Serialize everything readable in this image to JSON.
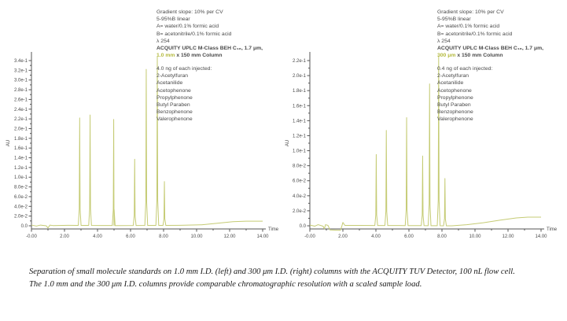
{
  "colors": {
    "trace": "#c5cb74",
    "highlight": "#b3b93c",
    "text": "#4a4a4a",
    "axis": "#555555",
    "caption": "#1a1a1a"
  },
  "caption": {
    "line1": "Separation of small molecule standards on 1.0 mm I.D. (left) and 300 μm I.D. (right) columns with the ACQUITY TUV Detector, 100 nL flow cell.",
    "line2": "The 1.0 mm and the 300 μm I.D. columns provide comparable chromatographic resolution with a scaled sample load."
  },
  "chart_data": [
    {
      "type": "line",
      "position": "left",
      "header": {
        "lines": [
          "Gradient slope: 10% per CV",
          "5-95%B linear",
          "A= water/0.1% formic acid",
          "B= acetonitrile/0.1% formic acid",
          "λ 254",
          "ACQUITY UPLC M-Class BEH C₁₈, 1.7 μm,"
        ],
        "column_highlight": "1.0 mm",
        "column_rest": " x 150 mm Column"
      },
      "sample_lines": [
        "4.0 ng of each injected:",
        "2-Acetylfuran",
        "Acetanilide",
        "Acetophenone",
        "Propylphenone",
        "Butyl Paraben",
        "Benzophenone",
        "Valerophenone"
      ],
      "xlabel": "Time",
      "ylabel": "AU",
      "xlim": [
        0,
        14
      ],
      "ylim": [
        0,
        0.34
      ],
      "x_ticks": [
        "-0.00",
        "2.00",
        "4.00",
        "6.00",
        "8.00",
        "10.00",
        "12.00",
        "14.00"
      ],
      "y_ticks": [
        "0.0",
        "2.0e-2",
        "4.0e-2",
        "6.0e-2",
        "8.0e-2",
        "1.0e-1",
        "1.2e-1",
        "1.4e-1",
        "1.6e-1",
        "1.8e-1",
        "2.0e-1",
        "2.2e-1",
        "2.4e-1",
        "2.6e-1",
        "2.8e-1",
        "3.0e-1",
        "3.2e-1",
        "3.4e-1"
      ],
      "grid": false,
      "peaks": [
        {
          "name": "2-Acetylfuran",
          "t": 2.92,
          "au": 0.222
        },
        {
          "name": "Acetanilide",
          "t": 3.55,
          "au": 0.228
        },
        {
          "name": "Acetophenone",
          "t": 4.98,
          "au": 0.219
        },
        {
          "name": "Propylphenone",
          "t": 6.25,
          "au": 0.137
        },
        {
          "name": "Butyl Paraben",
          "t": 6.95,
          "au": 0.322
        },
        {
          "name": "Benzophenone",
          "t": 7.62,
          "au": 0.348
        },
        {
          "name": "Valerophenone",
          "t": 8.05,
          "au": 0.091
        }
      ],
      "baseline": [
        [
          0,
          0.0015
        ],
        [
          0.3,
          -0.0005
        ],
        [
          0.55,
          0.0015
        ],
        [
          0.9,
          0.0
        ],
        [
          1.0,
          -0.0045
        ],
        [
          1.12,
          0.0015
        ],
        [
          1.3,
          0.0005
        ],
        [
          2.2,
          0.001
        ],
        [
          5,
          0.0005
        ],
        [
          9,
          0.001
        ],
        [
          10.3,
          0.002
        ],
        [
          11.2,
          0.005
        ],
        [
          12.2,
          0.0085
        ],
        [
          13,
          0.0095
        ],
        [
          14,
          0.0095
        ]
      ]
    },
    {
      "type": "line",
      "position": "right",
      "header": {
        "lines": [
          "Gradient slope: 10% per CV",
          "5-95%B linear",
          "A= water/0.1% formic acid",
          "B= acetonitrile/0.1% formic acid",
          "λ 254",
          "ACQUITY UPLC M-Class BEH C₁₈, 1.7 μm,"
        ],
        "column_highlight": "300 μm",
        "column_rest": " x 150 mm Column"
      },
      "sample_lines": [
        "0.4 ng of each injected:",
        "2-Acetylfuran",
        "Acetanilide",
        "Acetophenone",
        "Propylphenone",
        "Butyl Paraben",
        "Benzophenone",
        "Valerophenone"
      ],
      "xlabel": "Time",
      "ylabel": "AU",
      "xlim": [
        0,
        14
      ],
      "ylim": [
        0,
        0.22
      ],
      "x_ticks": [
        "-0.00",
        "2.00",
        "4.00",
        "6.00",
        "8.00",
        "10.00",
        "12.00",
        "14.00"
      ],
      "y_ticks": [
        "0.0",
        "2.0e-2",
        "4.0e-2",
        "6.0e-2",
        "8.0e-2",
        "1.0e-1",
        "1.2e-1",
        "1.4e-1",
        "1.6e-1",
        "1.8e-1",
        "2.0e-1",
        "2.2e-1"
      ],
      "grid": false,
      "peaks": [
        {
          "name": "2-Acetylfuran",
          "t": 4.02,
          "au": 0.095
        },
        {
          "name": "Acetanilide",
          "t": 4.63,
          "au": 0.127
        },
        {
          "name": "Acetophenone",
          "t": 5.86,
          "au": 0.144
        },
        {
          "name": "Propylphenone",
          "t": 6.83,
          "au": 0.093
        },
        {
          "name": "Butyl Paraben",
          "t": 7.25,
          "au": 0.189
        },
        {
          "name": "Benzophenone",
          "t": 7.8,
          "au": 0.226
        },
        {
          "name": "Valerophenone",
          "t": 8.18,
          "au": 0.063
        }
      ],
      "baseline": [
        [
          0,
          0.001
        ],
        [
          0.3,
          -0.0005
        ],
        [
          0.5,
          0.0015
        ],
        [
          0.8,
          -0.0005
        ],
        [
          0.88,
          -0.004
        ],
        [
          0.95,
          0.0015
        ],
        [
          1.1,
          0.0005
        ],
        [
          1.22,
          -0.0055
        ],
        [
          1.85,
          -0.006
        ],
        [
          1.93,
          -0.001
        ],
        [
          2.0,
          0.0045
        ],
        [
          2.12,
          0.0005
        ],
        [
          3,
          0.0005
        ],
        [
          6,
          0.0003
        ],
        [
          8.6,
          0.0
        ],
        [
          9.5,
          0.0015
        ],
        [
          10.5,
          0.004
        ],
        [
          11.5,
          0.0075
        ],
        [
          12.5,
          0.0105
        ],
        [
          13.2,
          0.0115
        ],
        [
          14,
          0.0115
        ]
      ]
    }
  ]
}
